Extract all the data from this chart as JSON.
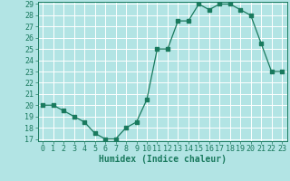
{
  "x": [
    0,
    1,
    2,
    3,
    4,
    5,
    6,
    7,
    8,
    9,
    10,
    11,
    12,
    13,
    14,
    15,
    16,
    17,
    18,
    19,
    20,
    21,
    22,
    23
  ],
  "y": [
    20,
    20,
    19.5,
    19,
    18.5,
    17.5,
    17,
    17,
    18,
    18.5,
    20.5,
    25,
    25,
    27.5,
    27.5,
    29,
    28.5,
    29,
    29,
    28.5,
    28,
    25.5,
    23,
    23
  ],
  "xlabel": "Humidex (Indice chaleur)",
  "ylim": [
    17,
    29
  ],
  "xlim": [
    -0.5,
    23.5
  ],
  "yticks": [
    17,
    18,
    19,
    20,
    21,
    22,
    23,
    24,
    25,
    26,
    27,
    28,
    29
  ],
  "xticks": [
    0,
    1,
    2,
    3,
    4,
    5,
    6,
    7,
    8,
    9,
    10,
    11,
    12,
    13,
    14,
    15,
    16,
    17,
    18,
    19,
    20,
    21,
    22,
    23
  ],
  "line_color": "#1a7a5e",
  "marker_color": "#1a7a5e",
  "bg_color": "#b2e4e4",
  "grid_color": "#ffffff",
  "label_fontsize": 7,
  "tick_fontsize": 6,
  "linewidth": 0.9,
  "markersize": 2.2
}
